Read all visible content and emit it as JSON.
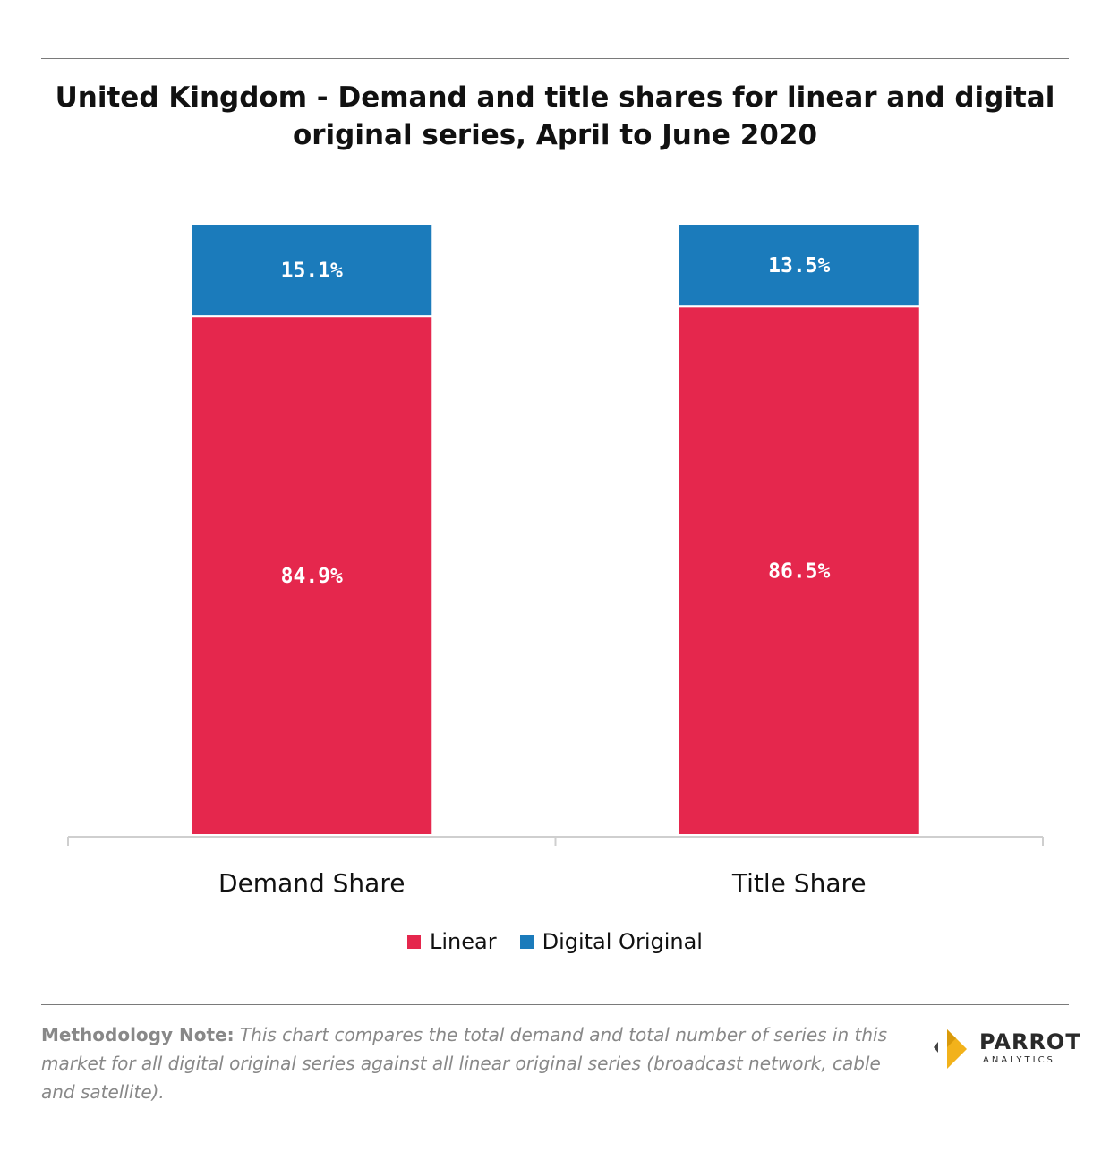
{
  "title": "United Kingdom - Demand and title shares for linear and digital original series, April to June 2020",
  "chart_data": {
    "type": "bar",
    "stacked": true,
    "categories": [
      "Demand Share",
      "Title Share"
    ],
    "series": [
      {
        "name": "Linear",
        "values": [
          84.9,
          86.5
        ],
        "labels": [
          "84.9%",
          "86.5%"
        ],
        "color": "#e5274d"
      },
      {
        "name": "Digital Original",
        "values": [
          15.1,
          13.5
        ],
        "labels": [
          "15.1%",
          "13.5%"
        ],
        "color": "#1b7bbb"
      }
    ],
    "ylim": [
      0,
      100
    ],
    "grid": false,
    "legend": "bottom"
  },
  "legend": {
    "linear": "Linear",
    "digital": "Digital Original"
  },
  "note": {
    "label": "Methodology Note:",
    "text": "This chart compares the total demand and total number of series in this market for all digital original series against all linear original series (broadcast network, cable and satellite)."
  },
  "logo": {
    "name": "PARROT",
    "sub": "ANALYTICS",
    "colors": {
      "gold": "#f2b21b",
      "grey": "#444444"
    }
  }
}
